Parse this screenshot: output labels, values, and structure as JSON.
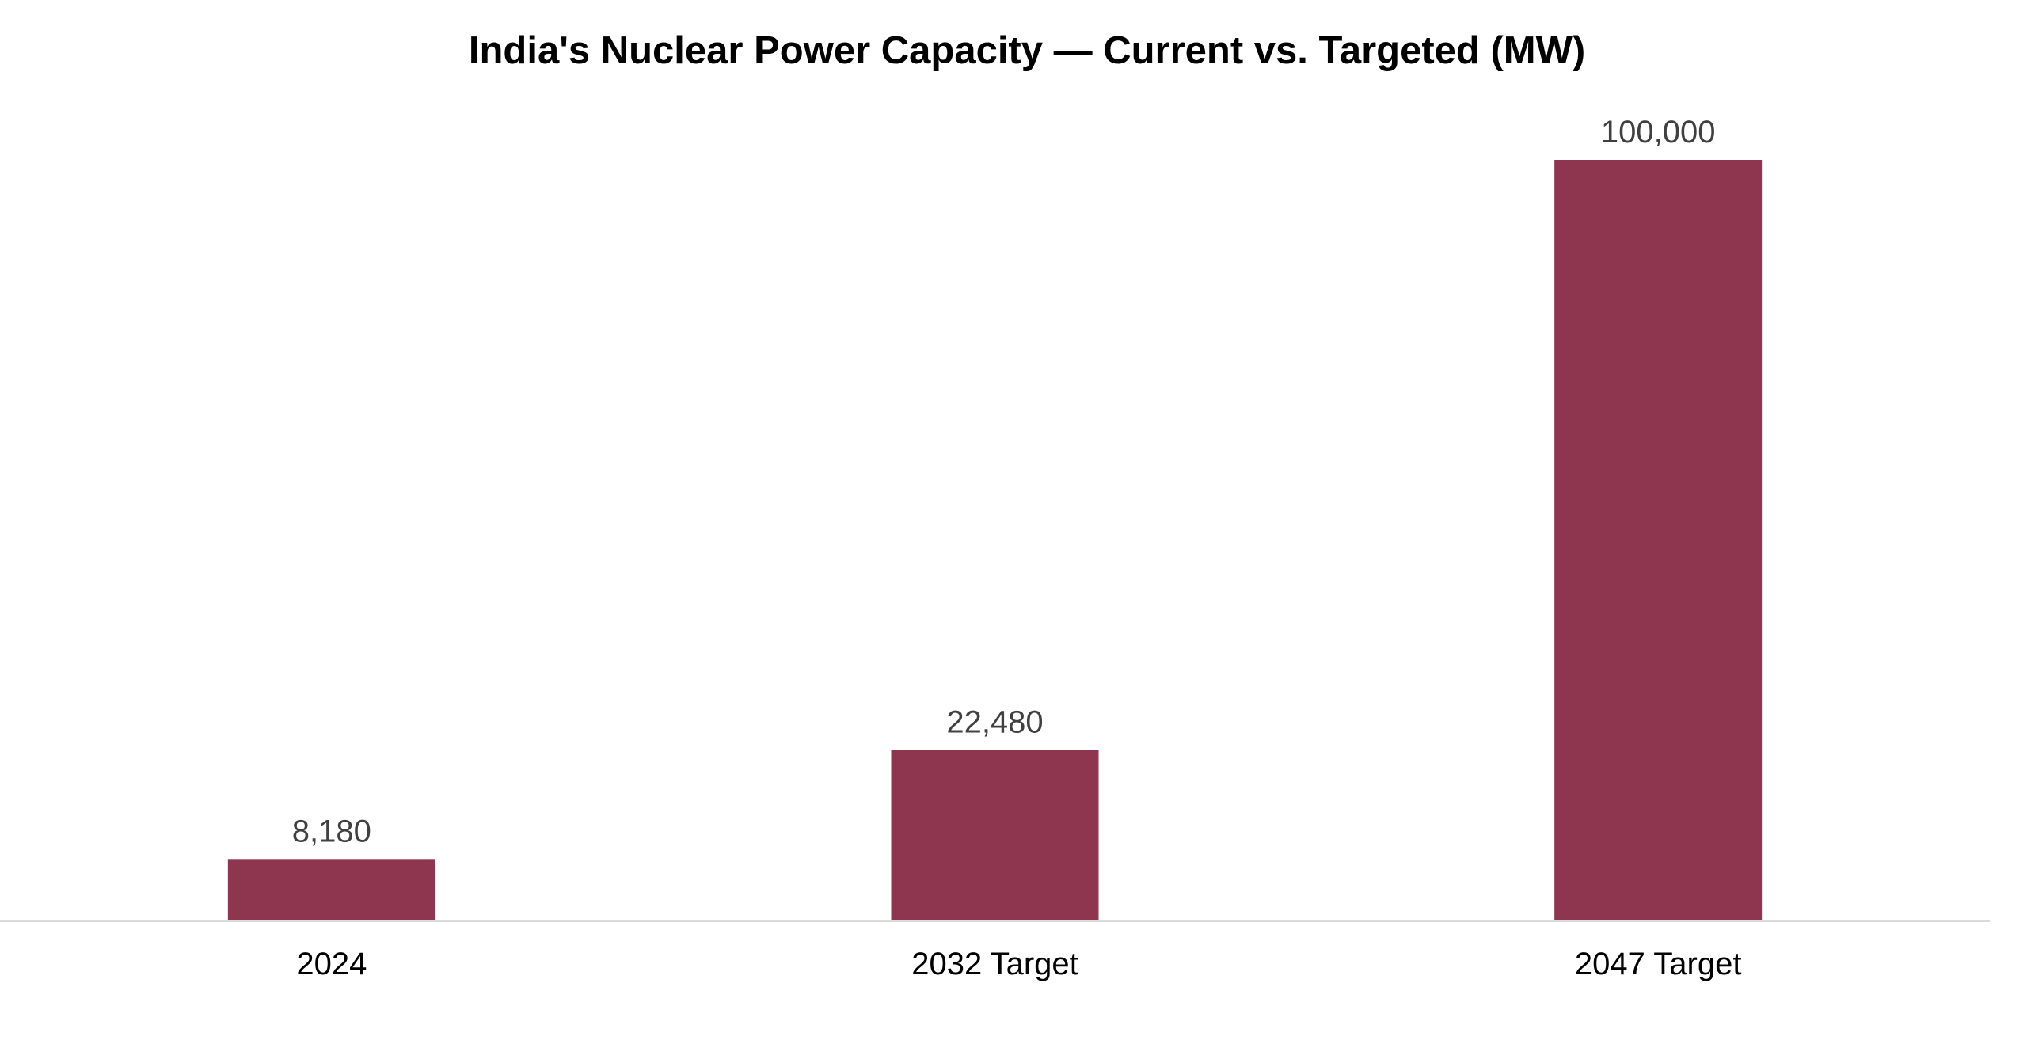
{
  "chart_data": {
    "type": "bar",
    "title": "India's Nuclear Power Capacity — Current vs. Targeted (MW)",
    "categories": [
      "2024",
      "2032 Target",
      "2047 Target"
    ],
    "values": [
      8180,
      22480,
      100000
    ],
    "value_labels": [
      "8,180",
      "22,480",
      "100,000"
    ],
    "xlabel": "",
    "ylabel": "",
    "ylim": [
      0,
      100000
    ],
    "grid": false,
    "legend": "none",
    "bar_color": "#8E3650",
    "axis_color": "#D9D9D9"
  }
}
